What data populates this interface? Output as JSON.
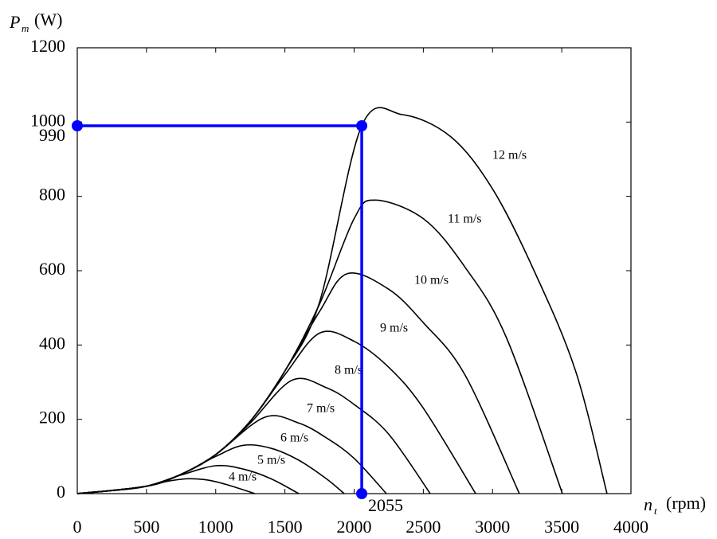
{
  "chart_data": {
    "type": "line",
    "y_label": {
      "symbol": "P",
      "subscript": "m",
      "unit": "(W)"
    },
    "x_label": {
      "symbol": "n",
      "subscript": "t",
      "unit": "(rpm)"
    },
    "xlim": [
      0,
      4000
    ],
    "xticks": [
      0,
      500,
      1000,
      1500,
      2000,
      2500,
      3000,
      3500,
      4000
    ],
    "ylim": [
      0,
      1200
    ],
    "yticks": [
      0,
      200,
      400,
      600,
      800,
      1000,
      1200
    ],
    "series": [
      {
        "name": "4 m/s",
        "color": "#000000",
        "x": [
          0,
          250,
          500,
          650,
          800,
          950,
          1100,
          1283
        ],
        "values": [
          0,
          8,
          20,
          33,
          40,
          36,
          22,
          0
        ]
      },
      {
        "name": "5 m/s",
        "color": "#000000",
        "x": [
          0,
          250,
          500,
          750,
          1000,
          1200,
          1400,
          1600
        ],
        "values": [
          0,
          8,
          20,
          50,
          75,
          66,
          40,
          0
        ]
      },
      {
        "name": "6 m/s",
        "color": "#000000",
        "x": [
          0,
          250,
          500,
          750,
          1000,
          1200,
          1400,
          1600,
          1800,
          1928
        ],
        "values": [
          0,
          8,
          20,
          52,
          100,
          130,
          122,
          90,
          40,
          0
        ]
      },
      {
        "name": "7 m/s",
        "color": "#000000",
        "x": [
          0,
          250,
          500,
          750,
          1000,
          1350,
          1600,
          1800,
          2000,
          2233
        ],
        "values": [
          0,
          8,
          20,
          52,
          105,
          205,
          190,
          150,
          95,
          0
        ]
      },
      {
        "name": "8 m/s",
        "color": "#000000",
        "x": [
          0,
          500,
          750,
          1000,
          1250,
          1550,
          1800,
          2000,
          2250,
          2550
        ],
        "values": [
          0,
          20,
          52,
          105,
          190,
          305,
          285,
          240,
          160,
          0
        ]
      },
      {
        "name": "9 m/s",
        "color": "#000000",
        "x": [
          0,
          500,
          750,
          1000,
          1250,
          1500,
          1750,
          2000,
          2250,
          2500,
          2878
        ],
        "values": [
          0,
          20,
          52,
          105,
          195,
          320,
          432,
          410,
          340,
          230,
          0
        ]
      },
      {
        "name": "10 m/s",
        "color": "#000000",
        "x": [
          0,
          500,
          750,
          1000,
          1250,
          1500,
          1750,
          1950,
          2250,
          2500,
          2800,
          3194
        ],
        "values": [
          0,
          20,
          52,
          105,
          195,
          330,
          490,
          592,
          550,
          460,
          320,
          0
        ]
      },
      {
        "name": "11 m/s",
        "color": "#000000",
        "x": [
          0,
          500,
          750,
          1000,
          1250,
          1500,
          1750,
          2000,
          2150,
          2500,
          2800,
          3100,
          3505
        ],
        "values": [
          0,
          20,
          52,
          105,
          195,
          330,
          510,
          740,
          790,
          740,
          610,
          420,
          0
        ]
      },
      {
        "name": "12 m/s",
        "color": "#000000",
        "x": [
          0,
          500,
          750,
          1000,
          1250,
          1500,
          1750,
          2055,
          2350,
          2700,
          3000,
          3300,
          3600,
          3827
        ],
        "values": [
          0,
          20,
          52,
          105,
          195,
          330,
          515,
          990,
          1020,
          960,
          820,
          600,
          330,
          0
        ]
      }
    ],
    "operating_point": {
      "x": 2055,
      "y": 990,
      "color": "#0000ff"
    }
  }
}
